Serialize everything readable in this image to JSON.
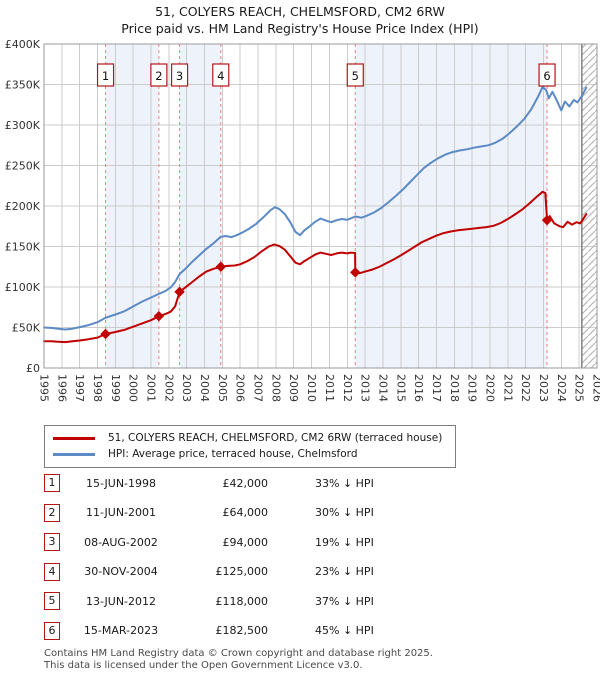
{
  "page": {
    "title_line1": "51, COLYERS REACH, CHELMSFORD, CM2 6RW",
    "title_line2": "Price paid vs. HM Land Registry's House Price Index (HPI)",
    "footer_line1": "Contains HM Land Registry data © Crown copyright and database right 2025.",
    "footer_line2": "This data is licensed under the Open Government Licence v3.0."
  },
  "legend": {
    "series1": "51, COLYERS REACH, CHELMSFORD, CM2 6RW (terraced house)",
    "series2": "HPI: Average price, terraced house, Chelmsford"
  },
  "transactions": [
    {
      "n": "1",
      "date": "15-JUN-1998",
      "price": "£42,000",
      "hpi": "33% ↓ HPI"
    },
    {
      "n": "2",
      "date": "11-JUN-2001",
      "price": "£64,000",
      "hpi": "30% ↓ HPI"
    },
    {
      "n": "3",
      "date": "08-AUG-2002",
      "price": "£94,000",
      "hpi": "19% ↓ HPI"
    },
    {
      "n": "4",
      "date": "30-NOV-2004",
      "price": "£125,000",
      "hpi": "23% ↓ HPI"
    },
    {
      "n": "5",
      "date": "13-JUN-2012",
      "price": "£118,000",
      "hpi": "37% ↓ HPI"
    },
    {
      "n": "6",
      "date": "15-MAR-2023",
      "price": "£182,500",
      "hpi": "45% ↓ HPI"
    }
  ],
  "chart_data": {
    "type": "line",
    "title": "51, COLYERS REACH, CHELMSFORD, CM2 6RW",
    "subtitle": "Price paid vs. HM Land Registry's House Price Index (HPI)",
    "x_range": [
      1995,
      2026
    ],
    "y_range": [
      0,
      400000
    ],
    "y_tick_step": 50000,
    "y_tick_labels": [
      "£0",
      "£50K",
      "£100K",
      "£150K",
      "£200K",
      "£250K",
      "£300K",
      "£350K",
      "£400K"
    ],
    "x_tick_labels": [
      "1995",
      "1996",
      "1997",
      "1998",
      "1999",
      "2000",
      "2001",
      "2002",
      "2003",
      "2004",
      "2005",
      "2006",
      "2007",
      "2008",
      "2009",
      "2010",
      "2011",
      "2012",
      "2013",
      "2014",
      "2015",
      "2016",
      "2017",
      "2018",
      "2019",
      "2020",
      "2021",
      "2022",
      "2023",
      "2024",
      "2025",
      "2026"
    ],
    "grid": true,
    "legend_position": "bottom",
    "hatch_start_x": 2025.15,
    "shaded_periods": [
      [
        1998.45,
        2001.44
      ],
      [
        2002.6,
        2004.91
      ],
      [
        2012.45,
        2023.2
      ]
    ],
    "sales": [
      {
        "n": "1",
        "x": 1998.45,
        "price": 42000
      },
      {
        "n": "2",
        "x": 2001.44,
        "price": 64000
      },
      {
        "n": "3",
        "x": 2002.6,
        "price": 94000
      },
      {
        "n": "4",
        "x": 2004.91,
        "price": 125000
      },
      {
        "n": "5",
        "x": 2012.45,
        "price": 118000
      },
      {
        "n": "6",
        "x": 2023.2,
        "price": 182500
      }
    ],
    "series": [
      {
        "name": "51, COLYERS REACH, CHELMSFORD, CM2 6RW (terraced house)",
        "color": "#c00000",
        "points": [
          [
            1995,
            33000
          ],
          [
            1995.4,
            33000
          ],
          [
            1995.8,
            32500
          ],
          [
            1996.2,
            32000
          ],
          [
            1996.6,
            33000
          ],
          [
            1997,
            34000
          ],
          [
            1997.5,
            35500
          ],
          [
            1998,
            37500
          ],
          [
            1998.45,
            42000
          ],
          [
            1999,
            44500
          ],
          [
            1999.5,
            47000
          ],
          [
            2000,
            51000
          ],
          [
            2000.5,
            55000
          ],
          [
            2001,
            59000
          ],
          [
            2001.44,
            64000
          ],
          [
            2001.8,
            66500
          ],
          [
            2002.1,
            69500
          ],
          [
            2002.35,
            76000
          ],
          [
            2002.6,
            94000
          ],
          [
            2002.9,
            99000
          ],
          [
            2003.3,
            106000
          ],
          [
            2003.7,
            113000
          ],
          [
            2004.1,
            119000
          ],
          [
            2004.5,
            122500
          ],
          [
            2004.91,
            125000
          ],
          [
            2005.3,
            126000
          ],
          [
            2005.7,
            126500
          ],
          [
            2006,
            128000
          ],
          [
            2006.4,
            132000
          ],
          [
            2006.8,
            137000
          ],
          [
            2007.2,
            144000
          ],
          [
            2007.6,
            150000
          ],
          [
            2007.9,
            152500
          ],
          [
            2008.2,
            150500
          ],
          [
            2008.5,
            146000
          ],
          [
            2008.8,
            138000
          ],
          [
            2009.1,
            130000
          ],
          [
            2009.35,
            128000
          ],
          [
            2009.6,
            132000
          ],
          [
            2009.9,
            136000
          ],
          [
            2010.2,
            140000
          ],
          [
            2010.5,
            142500
          ],
          [
            2010.8,
            141000
          ],
          [
            2011.1,
            139500
          ],
          [
            2011.4,
            141500
          ],
          [
            2011.7,
            142500
          ],
          [
            2012,
            141500
          ],
          [
            2012.2,
            142500
          ],
          [
            2012.44,
            142000
          ],
          [
            2012.45,
            118000
          ],
          [
            2012.7,
            117000
          ],
          [
            2013,
            119000
          ],
          [
            2013.4,
            121500
          ],
          [
            2013.8,
            125000
          ],
          [
            2014.2,
            129500
          ],
          [
            2014.6,
            134000
          ],
          [
            2015,
            139000
          ],
          [
            2015.4,
            144500
          ],
          [
            2015.8,
            150000
          ],
          [
            2016.2,
            155500
          ],
          [
            2016.6,
            159500
          ],
          [
            2017,
            163500
          ],
          [
            2017.4,
            166500
          ],
          [
            2017.8,
            168500
          ],
          [
            2018.2,
            170000
          ],
          [
            2018.6,
            171000
          ],
          [
            2019,
            172000
          ],
          [
            2019.4,
            173000
          ],
          [
            2019.8,
            174000
          ],
          [
            2020.2,
            175500
          ],
          [
            2020.6,
            179000
          ],
          [
            2021,
            184000
          ],
          [
            2021.4,
            189500
          ],
          [
            2021.8,
            195500
          ],
          [
            2022.2,
            203000
          ],
          [
            2022.6,
            211000
          ],
          [
            2022.95,
            217500
          ],
          [
            2023.1,
            216000
          ],
          [
            2023.2,
            182500
          ],
          [
            2023.35,
            187500
          ],
          [
            2023.6,
            178500
          ],
          [
            2023.9,
            175000
          ],
          [
            2024.1,
            174000
          ],
          [
            2024.35,
            180500
          ],
          [
            2024.6,
            177000
          ],
          [
            2024.85,
            180000
          ],
          [
            2025.05,
            178500
          ],
          [
            2025.2,
            183000
          ],
          [
            2025.4,
            190000
          ]
        ]
      },
      {
        "name": "HPI: Average price, terraced house, Chelmsford",
        "color": "#5b8ac5",
        "points": [
          [
            1995,
            50000
          ],
          [
            1995.4,
            49500
          ],
          [
            1995.8,
            48500
          ],
          [
            1996.2,
            47500
          ],
          [
            1996.6,
            48500
          ],
          [
            1997,
            50500
          ],
          [
            1997.5,
            53000
          ],
          [
            1998,
            56500
          ],
          [
            1998.45,
            62000
          ],
          [
            1999,
            66000
          ],
          [
            1999.5,
            70000
          ],
          [
            2000,
            76000
          ],
          [
            2000.5,
            82000
          ],
          [
            2001,
            87000
          ],
          [
            2001.44,
            91500
          ],
          [
            2001.8,
            95000
          ],
          [
            2002.1,
            99500
          ],
          [
            2002.35,
            106000
          ],
          [
            2002.6,
            116000
          ],
          [
            2002.9,
            122000
          ],
          [
            2003.3,
            131000
          ],
          [
            2003.7,
            139000
          ],
          [
            2004.1,
            147000
          ],
          [
            2004.5,
            154000
          ],
          [
            2004.91,
            162000
          ],
          [
            2005.2,
            163000
          ],
          [
            2005.5,
            161500
          ],
          [
            2005.8,
            164000
          ],
          [
            2006.1,
            167000
          ],
          [
            2006.5,
            172000
          ],
          [
            2006.9,
            178000
          ],
          [
            2007.3,
            186000
          ],
          [
            2007.7,
            195000
          ],
          [
            2007.95,
            198500
          ],
          [
            2008.2,
            196000
          ],
          [
            2008.5,
            190000
          ],
          [
            2008.8,
            180000
          ],
          [
            2009.1,
            168000
          ],
          [
            2009.35,
            164000
          ],
          [
            2009.6,
            170000
          ],
          [
            2009.9,
            175000
          ],
          [
            2010.2,
            180500
          ],
          [
            2010.5,
            184500
          ],
          [
            2010.8,
            182000
          ],
          [
            2011.1,
            180000
          ],
          [
            2011.4,
            182500
          ],
          [
            2011.7,
            184000
          ],
          [
            2012,
            183000
          ],
          [
            2012.45,
            187000
          ],
          [
            2012.8,
            185500
          ],
          [
            2013.1,
            188000
          ],
          [
            2013.5,
            192000
          ],
          [
            2013.9,
            197500
          ],
          [
            2014.3,
            204500
          ],
          [
            2014.7,
            212000
          ],
          [
            2015.1,
            220000
          ],
          [
            2015.5,
            229000
          ],
          [
            2015.9,
            238000
          ],
          [
            2016.3,
            247000
          ],
          [
            2016.7,
            253500
          ],
          [
            2017.1,
            259000
          ],
          [
            2017.5,
            263500
          ],
          [
            2017.9,
            266500
          ],
          [
            2018.3,
            268500
          ],
          [
            2018.7,
            270000
          ],
          [
            2019.1,
            272000
          ],
          [
            2019.5,
            273500
          ],
          [
            2019.9,
            275000
          ],
          [
            2020.3,
            278000
          ],
          [
            2020.7,
            283000
          ],
          [
            2021.1,
            290000
          ],
          [
            2021.5,
            298000
          ],
          [
            2021.9,
            307000
          ],
          [
            2022.3,
            319000
          ],
          [
            2022.7,
            335000
          ],
          [
            2022.95,
            347000
          ],
          [
            2023.15,
            343000
          ],
          [
            2023.3,
            333000
          ],
          [
            2023.5,
            341000
          ],
          [
            2023.75,
            330000
          ],
          [
            2024,
            318000
          ],
          [
            2024.2,
            329000
          ],
          [
            2024.45,
            323000
          ],
          [
            2024.7,
            331000
          ],
          [
            2024.9,
            328000
          ],
          [
            2025.1,
            334000
          ],
          [
            2025.4,
            346000
          ]
        ]
      }
    ],
    "colors": {
      "band": "#eef2fa",
      "grid": "#cccccc",
      "dashed": "#f08080",
      "box_border": "#b01818",
      "hatch": "#b9b9b9",
      "hatch_edge": "#777777",
      "border": "#999999",
      "tick_text": "#333333"
    }
  }
}
